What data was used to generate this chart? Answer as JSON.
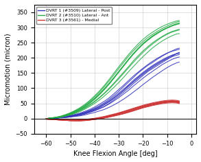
{
  "xlabel": "Knee Flexion Angle [deg]",
  "ylabel": "Micromotion (micron)",
  "xlim": [
    -65,
    2
  ],
  "ylim": [
    -50,
    375
  ],
  "xticks": [
    -60,
    -50,
    -40,
    -30,
    -20,
    -10,
    0
  ],
  "yticks": [
    -50,
    0,
    50,
    100,
    150,
    200,
    250,
    300,
    350
  ],
  "legend": [
    {
      "label": "DVRT 1 (#3509) Lateral - Post"
    },
    {
      "label": "DVRT 2 (#3510) Lateral - Ant"
    },
    {
      "label": "DVRT 3 (#3561) - Medial"
    }
  ],
  "blue_color": "#3333BB",
  "green_color": "#22AA44",
  "red_color": "#CC3333",
  "bg_color": "#FFFFFF",
  "grid_color": "#BBBBBB",
  "fontsize": 7,
  "linewidth": 0.75,
  "blue_trials": [
    [
      [
        -60,
        -58,
        -56,
        -54,
        -52,
        -50,
        -48,
        -46,
        -44,
        -42,
        -40,
        -38,
        -36,
        -34,
        -32,
        -30,
        -28,
        -26,
        -24,
        -22,
        -20,
        -18,
        -16,
        -14,
        -12,
        -10,
        -8,
        -6,
        -5
      ],
      [
        0,
        1,
        2,
        3,
        4,
        6,
        8,
        11,
        15,
        20,
        26,
        33,
        40,
        50,
        62,
        74,
        87,
        100,
        115,
        128,
        142,
        155,
        165,
        175,
        185,
        195,
        205,
        215,
        218
      ]
    ],
    [
      [
        -60,
        -58,
        -56,
        -54,
        -52,
        -50,
        -48,
        -46,
        -44,
        -42,
        -40,
        -38,
        -36,
        -34,
        -32,
        -30,
        -28,
        -26,
        -24,
        -22,
        -20,
        -18,
        -16,
        -14,
        -12,
        -10,
        -8,
        -6,
        -5
      ],
      [
        0,
        1,
        2,
        4,
        6,
        9,
        12,
        16,
        21,
        27,
        34,
        42,
        52,
        63,
        76,
        90,
        105,
        120,
        135,
        150,
        163,
        175,
        185,
        196,
        206,
        215,
        223,
        230,
        232
      ]
    ],
    [
      [
        -60,
        -58,
        -56,
        -54,
        -52,
        -50,
        -48,
        -46,
        -44,
        -42,
        -40,
        -38,
        -36,
        -34,
        -32,
        -30,
        -28,
        -26,
        -24,
        -22,
        -20,
        -18,
        -16,
        -14,
        -12,
        -10,
        -8,
        -6,
        -5
      ],
      [
        0,
        1,
        2,
        3,
        5,
        7,
        10,
        13,
        18,
        23,
        29,
        36,
        45,
        55,
        67,
        80,
        93,
        108,
        122,
        136,
        149,
        161,
        172,
        182,
        191,
        200,
        208,
        214,
        216
      ]
    ],
    [
      [
        -60,
        -58,
        -56,
        -54,
        -52,
        -50,
        -48,
        -46,
        -44,
        -42,
        -40,
        -38,
        -36,
        -34,
        -32,
        -30,
        -28,
        -26,
        -24,
        -22,
        -20,
        -18,
        -16,
        -14,
        -12,
        -10,
        -8,
        -6,
        -5
      ],
      [
        0,
        1,
        3,
        5,
        7,
        10,
        14,
        18,
        24,
        30,
        38,
        47,
        57,
        68,
        82,
        96,
        110,
        125,
        140,
        153,
        166,
        178,
        189,
        199,
        208,
        216,
        222,
        226,
        228
      ]
    ],
    [
      [
        -60,
        -58,
        -56,
        -54,
        -52,
        -50,
        -48,
        -46,
        -44,
        -42,
        -40,
        -38,
        -36,
        -34,
        -32,
        -30,
        -28,
        -26,
        -24,
        -22,
        -20,
        -18,
        -16,
        -14,
        -12,
        -10,
        -8,
        -6,
        -5
      ],
      [
        0,
        0,
        1,
        2,
        3,
        5,
        7,
        9,
        12,
        16,
        20,
        25,
        30,
        37,
        45,
        54,
        64,
        75,
        87,
        99,
        112,
        124,
        136,
        147,
        158,
        168,
        177,
        184,
        186
      ]
    ],
    [
      [
        -60,
        -58,
        -56,
        -54,
        -52,
        -50,
        -48,
        -46,
        -44,
        -42,
        -40,
        -38,
        -36,
        -34,
        -32,
        -30,
        -28,
        -26,
        -24,
        -22,
        -20,
        -18,
        -16,
        -14,
        -12,
        -10,
        -8,
        -6,
        -5
      ],
      [
        0,
        1,
        2,
        4,
        6,
        8,
        11,
        15,
        20,
        26,
        32,
        40,
        49,
        59,
        71,
        84,
        97,
        111,
        126,
        139,
        152,
        164,
        175,
        185,
        194,
        202,
        209,
        214,
        215
      ]
    ],
    [
      [
        -60,
        -58,
        -56,
        -54,
        -52,
        -50,
        -48,
        -46,
        -44,
        -42,
        -40,
        -38,
        -36,
        -34,
        -32,
        -30,
        -28,
        -26,
        -24,
        -22,
        -20,
        -18,
        -16,
        -14,
        -12,
        -10,
        -8,
        -6,
        -5
      ],
      [
        0,
        0,
        1,
        3,
        4,
        6,
        9,
        12,
        16,
        21,
        26,
        32,
        39,
        48,
        58,
        69,
        81,
        93,
        107,
        120,
        133,
        145,
        156,
        167,
        178,
        187,
        195,
        201,
        203
      ]
    ],
    [
      [
        -60,
        -58,
        -56,
        -54,
        -52,
        -50,
        -48,
        -46,
        -44,
        -42,
        -40,
        -38,
        -36,
        -34,
        -32,
        -30,
        -28,
        -26,
        -24,
        -22,
        -20,
        -18,
        -16,
        -14,
        -12,
        -10,
        -8,
        -6,
        -5
      ],
      [
        0,
        1,
        2,
        3,
        5,
        8,
        11,
        14,
        19,
        24,
        30,
        37,
        46,
        56,
        67,
        79,
        92,
        106,
        120,
        133,
        146,
        158,
        169,
        179,
        189,
        197,
        204,
        209,
        211
      ]
    ]
  ],
  "green_trials": [
    [
      [
        -60,
        -58,
        -56,
        -54,
        -52,
        -50,
        -48,
        -46,
        -44,
        -42,
        -40,
        -38,
        -36,
        -34,
        -32,
        -30,
        -28,
        -26,
        -24,
        -22,
        -20,
        -18,
        -16,
        -14,
        -12,
        -10,
        -8,
        -6,
        -5
      ],
      [
        0,
        1,
        3,
        6,
        10,
        15,
        21,
        29,
        38,
        50,
        63,
        78,
        95,
        113,
        133,
        153,
        173,
        193,
        212,
        229,
        245,
        258,
        270,
        280,
        290,
        298,
        305,
        310,
        312
      ]
    ],
    [
      [
        -60,
        -58,
        -56,
        -54,
        -52,
        -50,
        -48,
        -46,
        -44,
        -42,
        -40,
        -38,
        -36,
        -34,
        -32,
        -30,
        -28,
        -26,
        -24,
        -22,
        -20,
        -18,
        -16,
        -14,
        -12,
        -10,
        -8,
        -6,
        -5
      ],
      [
        0,
        2,
        4,
        7,
        12,
        18,
        25,
        34,
        44,
        57,
        71,
        87,
        105,
        124,
        144,
        165,
        185,
        205,
        223,
        239,
        254,
        267,
        278,
        288,
        297,
        305,
        312,
        318,
        320
      ]
    ],
    [
      [
        -60,
        -58,
        -56,
        -54,
        -52,
        -50,
        -48,
        -46,
        -44,
        -42,
        -40,
        -38,
        -36,
        -34,
        -32,
        -30,
        -28,
        -26,
        -24,
        -22,
        -20,
        -18,
        -16,
        -14,
        -12,
        -10,
        -8,
        -6,
        -5
      ],
      [
        0,
        1,
        3,
        5,
        9,
        13,
        19,
        26,
        34,
        44,
        55,
        68,
        82,
        97,
        114,
        131,
        149,
        167,
        185,
        202,
        218,
        233,
        246,
        258,
        269,
        278,
        285,
        290,
        292
      ]
    ],
    [
      [
        -60,
        -58,
        -56,
        -54,
        -52,
        -50,
        -48,
        -46,
        -44,
        -42,
        -40,
        -38,
        -36,
        -34,
        -32,
        -30,
        -28,
        -26,
        -24,
        -22,
        -20,
        -18,
        -16,
        -14,
        -12,
        -10,
        -8,
        -6,
        -5
      ],
      [
        0,
        1,
        3,
        6,
        11,
        16,
        23,
        31,
        40,
        52,
        65,
        80,
        96,
        114,
        133,
        153,
        173,
        193,
        212,
        229,
        245,
        259,
        272,
        283,
        292,
        300,
        307,
        313,
        315
      ]
    ],
    [
      [
        -60,
        -58,
        -56,
        -54,
        -52,
        -50,
        -48,
        -46,
        -44,
        -42,
        -40,
        -38,
        -36,
        -34,
        -32,
        -30,
        -28,
        -26,
        -24,
        -22,
        -20,
        -18,
        -16,
        -14,
        -12,
        -10,
        -8,
        -6,
        -5
      ],
      [
        0,
        2,
        4,
        8,
        13,
        19,
        27,
        36,
        47,
        60,
        75,
        91,
        109,
        129,
        150,
        171,
        191,
        211,
        229,
        246,
        261,
        274,
        285,
        295,
        304,
        311,
        317,
        322,
        323
      ]
    ],
    [
      [
        -60,
        -58,
        -56,
        -54,
        -52,
        -50,
        -48,
        -46,
        -44,
        -42,
        -40,
        -38,
        -36,
        -34,
        -32,
        -30,
        -28,
        -26,
        -24,
        -22,
        -20,
        -18,
        -16,
        -14,
        -12,
        -10,
        -8,
        -6,
        -5
      ],
      [
        0,
        1,
        2,
        4,
        8,
        12,
        17,
        23,
        31,
        40,
        50,
        61,
        74,
        88,
        103,
        119,
        136,
        154,
        171,
        188,
        204,
        219,
        233,
        245,
        256,
        265,
        273,
        279,
        280
      ]
    ],
    [
      [
        -60,
        -58,
        -56,
        -54,
        -52,
        -50,
        -48,
        -46,
        -44,
        -42,
        -40,
        -38,
        -36,
        -34,
        -32,
        -30,
        -28,
        -26,
        -24,
        -22,
        -20,
        -18,
        -16,
        -14,
        -12,
        -10,
        -8,
        -6,
        -5
      ],
      [
        0,
        2,
        4,
        7,
        11,
        17,
        24,
        32,
        42,
        54,
        67,
        82,
        99,
        117,
        136,
        156,
        176,
        196,
        215,
        232,
        248,
        261,
        273,
        283,
        291,
        299,
        306,
        312,
        314
      ]
    ],
    [
      [
        -60,
        -58,
        -56,
        -54,
        -52,
        -50,
        -48,
        -46,
        -44,
        -42,
        -40,
        -38,
        -36,
        -34,
        -32,
        -30,
        -28,
        -26,
        -24,
        -22,
        -20,
        -18,
        -16,
        -14,
        -12,
        -10,
        -8,
        -6,
        -5
      ],
      [
        0,
        1,
        3,
        6,
        9,
        14,
        20,
        27,
        36,
        46,
        57,
        70,
        84,
        100,
        117,
        135,
        153,
        171,
        190,
        207,
        223,
        237,
        250,
        261,
        271,
        280,
        287,
        292,
        294
      ]
    ]
  ],
  "red_trials": [
    [
      [
        -60,
        -58,
        -56,
        -54,
        -52,
        -50,
        -48,
        -46,
        -44,
        -42,
        -40,
        -38,
        -36,
        -34,
        -32,
        -30,
        -28,
        -26,
        -24,
        -22,
        -20,
        -18,
        -16,
        -14,
        -12,
        -10,
        -8,
        -6,
        -5
      ],
      [
        -2,
        -3,
        -4,
        -5,
        -6,
        -7,
        -7,
        -7,
        -6,
        -5,
        -3,
        -1,
        2,
        5,
        9,
        13,
        17,
        22,
        27,
        32,
        37,
        41,
        45,
        49,
        52,
        54,
        55,
        54,
        52
      ]
    ],
    [
      [
        -60,
        -58,
        -56,
        -54,
        -52,
        -50,
        -48,
        -46,
        -44,
        -42,
        -40,
        -38,
        -36,
        -34,
        -32,
        -30,
        -28,
        -26,
        -24,
        -22,
        -20,
        -18,
        -16,
        -14,
        -12,
        -10,
        -8,
        -6,
        -5
      ],
      [
        -1,
        -2,
        -3,
        -4,
        -5,
        -6,
        -6,
        -6,
        -5,
        -3,
        -1,
        2,
        5,
        9,
        13,
        18,
        22,
        27,
        32,
        37,
        42,
        46,
        50,
        53,
        56,
        58,
        59,
        58,
        56
      ]
    ],
    [
      [
        -60,
        -58,
        -56,
        -54,
        -52,
        -50,
        -48,
        -46,
        -44,
        -42,
        -40,
        -38,
        -36,
        -34,
        -32,
        -30,
        -28,
        -26,
        -24,
        -22,
        -20,
        -18,
        -16,
        -14,
        -12,
        -10,
        -8,
        -6,
        -5
      ],
      [
        -2,
        -3,
        -4,
        -5,
        -6,
        -7,
        -7,
        -7,
        -6,
        -4,
        -2,
        0,
        3,
        7,
        11,
        15,
        19,
        24,
        29,
        34,
        39,
        43,
        47,
        50,
        53,
        55,
        56,
        55,
        53
      ]
    ],
    [
      [
        -60,
        -58,
        -56,
        -54,
        -52,
        -50,
        -48,
        -46,
        -44,
        -42,
        -40,
        -38,
        -36,
        -34,
        -32,
        -30,
        -28,
        -26,
        -24,
        -22,
        -20,
        -18,
        -16,
        -14,
        -12,
        -10,
        -8,
        -6,
        -5
      ],
      [
        -1,
        -2,
        -3,
        -4,
        -5,
        -5,
        -5,
        -4,
        -3,
        -1,
        1,
        4,
        7,
        11,
        15,
        19,
        24,
        29,
        34,
        39,
        44,
        48,
        52,
        55,
        58,
        60,
        61,
        60,
        58
      ]
    ],
    [
      [
        -60,
        -58,
        -56,
        -54,
        -52,
        -50,
        -48,
        -46,
        -44,
        -42,
        -40,
        -38,
        -36,
        -34,
        -32,
        -30,
        -28,
        -26,
        -24,
        -22,
        -20,
        -18,
        -16,
        -14,
        -12,
        -10,
        -8,
        -6,
        -5
      ],
      [
        -2,
        -3,
        -4,
        -5,
        -6,
        -7,
        -7,
        -7,
        -6,
        -5,
        -3,
        -1,
        2,
        5,
        9,
        12,
        16,
        21,
        26,
        31,
        36,
        40,
        44,
        48,
        51,
        53,
        54,
        53,
        51
      ]
    ],
    [
      [
        -60,
        -58,
        -56,
        -54,
        -52,
        -50,
        -48,
        -46,
        -44,
        -42,
        -40,
        -38,
        -36,
        -34,
        -32,
        -30,
        -28,
        -26,
        -24,
        -22,
        -20,
        -18,
        -16,
        -14,
        -12,
        -10,
        -8,
        -6,
        -5
      ],
      [
        -1,
        -2,
        -3,
        -4,
        -5,
        -5,
        -5,
        -5,
        -4,
        -2,
        0,
        2,
        6,
        9,
        13,
        17,
        22,
        27,
        32,
        37,
        41,
        45,
        49,
        52,
        55,
        57,
        58,
        57,
        55
      ]
    ],
    [
      [
        -60,
        -58,
        -56,
        -54,
        -52,
        -50,
        -48,
        -46,
        -44,
        -42,
        -40,
        -38,
        -36,
        -34,
        -32,
        -30,
        -28,
        -26,
        -24,
        -22,
        -20,
        -18,
        -16,
        -14,
        -12,
        -10,
        -8,
        -6,
        -5
      ],
      [
        -2,
        -3,
        -4,
        -5,
        -6,
        -7,
        -8,
        -8,
        -7,
        -5,
        -3,
        -1,
        2,
        5,
        8,
        12,
        16,
        20,
        25,
        30,
        35,
        39,
        43,
        46,
        49,
        51,
        52,
        51,
        49
      ]
    ],
    [
      [
        -60,
        -58,
        -56,
        -54,
        -52,
        -50,
        -48,
        -46,
        -44,
        -42,
        -40,
        -38,
        -36,
        -34,
        -32,
        -30,
        -28,
        -26,
        -24,
        -22,
        -20,
        -18,
        -16,
        -14,
        -12,
        -10,
        -8,
        -6,
        -5
      ],
      [
        -1,
        -2,
        -3,
        -4,
        -5,
        -6,
        -6,
        -6,
        -5,
        -3,
        -1,
        1,
        4,
        8,
        12,
        16,
        20,
        25,
        30,
        35,
        40,
        44,
        48,
        51,
        54,
        56,
        57,
        56,
        54
      ]
    ]
  ]
}
